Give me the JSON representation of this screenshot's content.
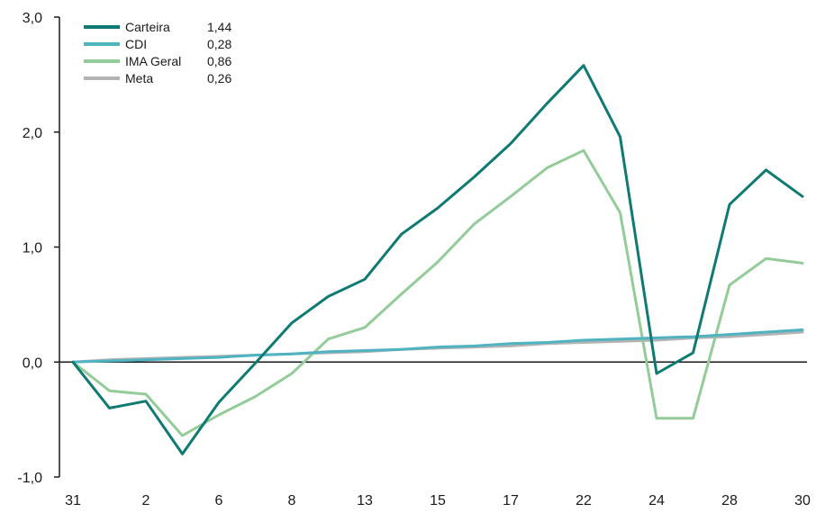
{
  "chart_data": {
    "type": "line",
    "x_tick_labels": [
      "31",
      "2",
      "6",
      "8",
      "13",
      "15",
      "17",
      "22",
      "24",
      "28",
      "30"
    ],
    "y_tick_labels": [
      "3,0",
      "2,0",
      "1,0",
      "0,0",
      "-1,0"
    ],
    "y_ticks": [
      3.0,
      2.0,
      1.0,
      0.0,
      -1.0
    ],
    "ylim": [
      -1.0,
      3.0
    ],
    "grid": false,
    "legend_position": "top-left",
    "title": "",
    "xlabel": "",
    "ylabel": "",
    "series": [
      {
        "name": "Carteira",
        "legend_value": "1,44",
        "color": "#0f7a72",
        "values": [
          0.0,
          -0.4,
          -0.34,
          -0.8,
          -0.35,
          -0.01,
          0.34,
          0.57,
          0.72,
          1.11,
          1.34,
          1.61,
          1.9,
          2.25,
          2.58,
          1.96,
          -0.1,
          0.08,
          1.37,
          1.67,
          1.44
        ]
      },
      {
        "name": "CDI",
        "legend_value": "0,28",
        "color": "#4fb3c2",
        "values": [
          0.0,
          0.01,
          0.02,
          0.03,
          0.04,
          0.06,
          0.07,
          0.09,
          0.1,
          0.11,
          0.13,
          0.14,
          0.16,
          0.17,
          0.19,
          0.2,
          0.21,
          0.22,
          0.24,
          0.26,
          0.28
        ]
      },
      {
        "name": "IMA Geral",
        "legend_value": "0,86",
        "color": "#93cc98",
        "values": [
          0.0,
          -0.25,
          -0.28,
          -0.64,
          -0.46,
          -0.3,
          -0.1,
          0.2,
          0.3,
          0.59,
          0.87,
          1.2,
          1.44,
          1.69,
          1.84,
          1.3,
          -0.49,
          -0.49,
          0.67,
          0.9,
          0.86
        ]
      },
      {
        "name": "Meta",
        "legend_value": "0,26",
        "color": "#b3b3b3",
        "values": [
          0.0,
          0.02,
          0.03,
          0.04,
          0.05,
          0.06,
          0.07,
          0.08,
          0.09,
          0.11,
          0.12,
          0.13,
          0.14,
          0.16,
          0.17,
          0.18,
          0.19,
          0.21,
          0.22,
          0.24,
          0.26
        ]
      }
    ]
  }
}
